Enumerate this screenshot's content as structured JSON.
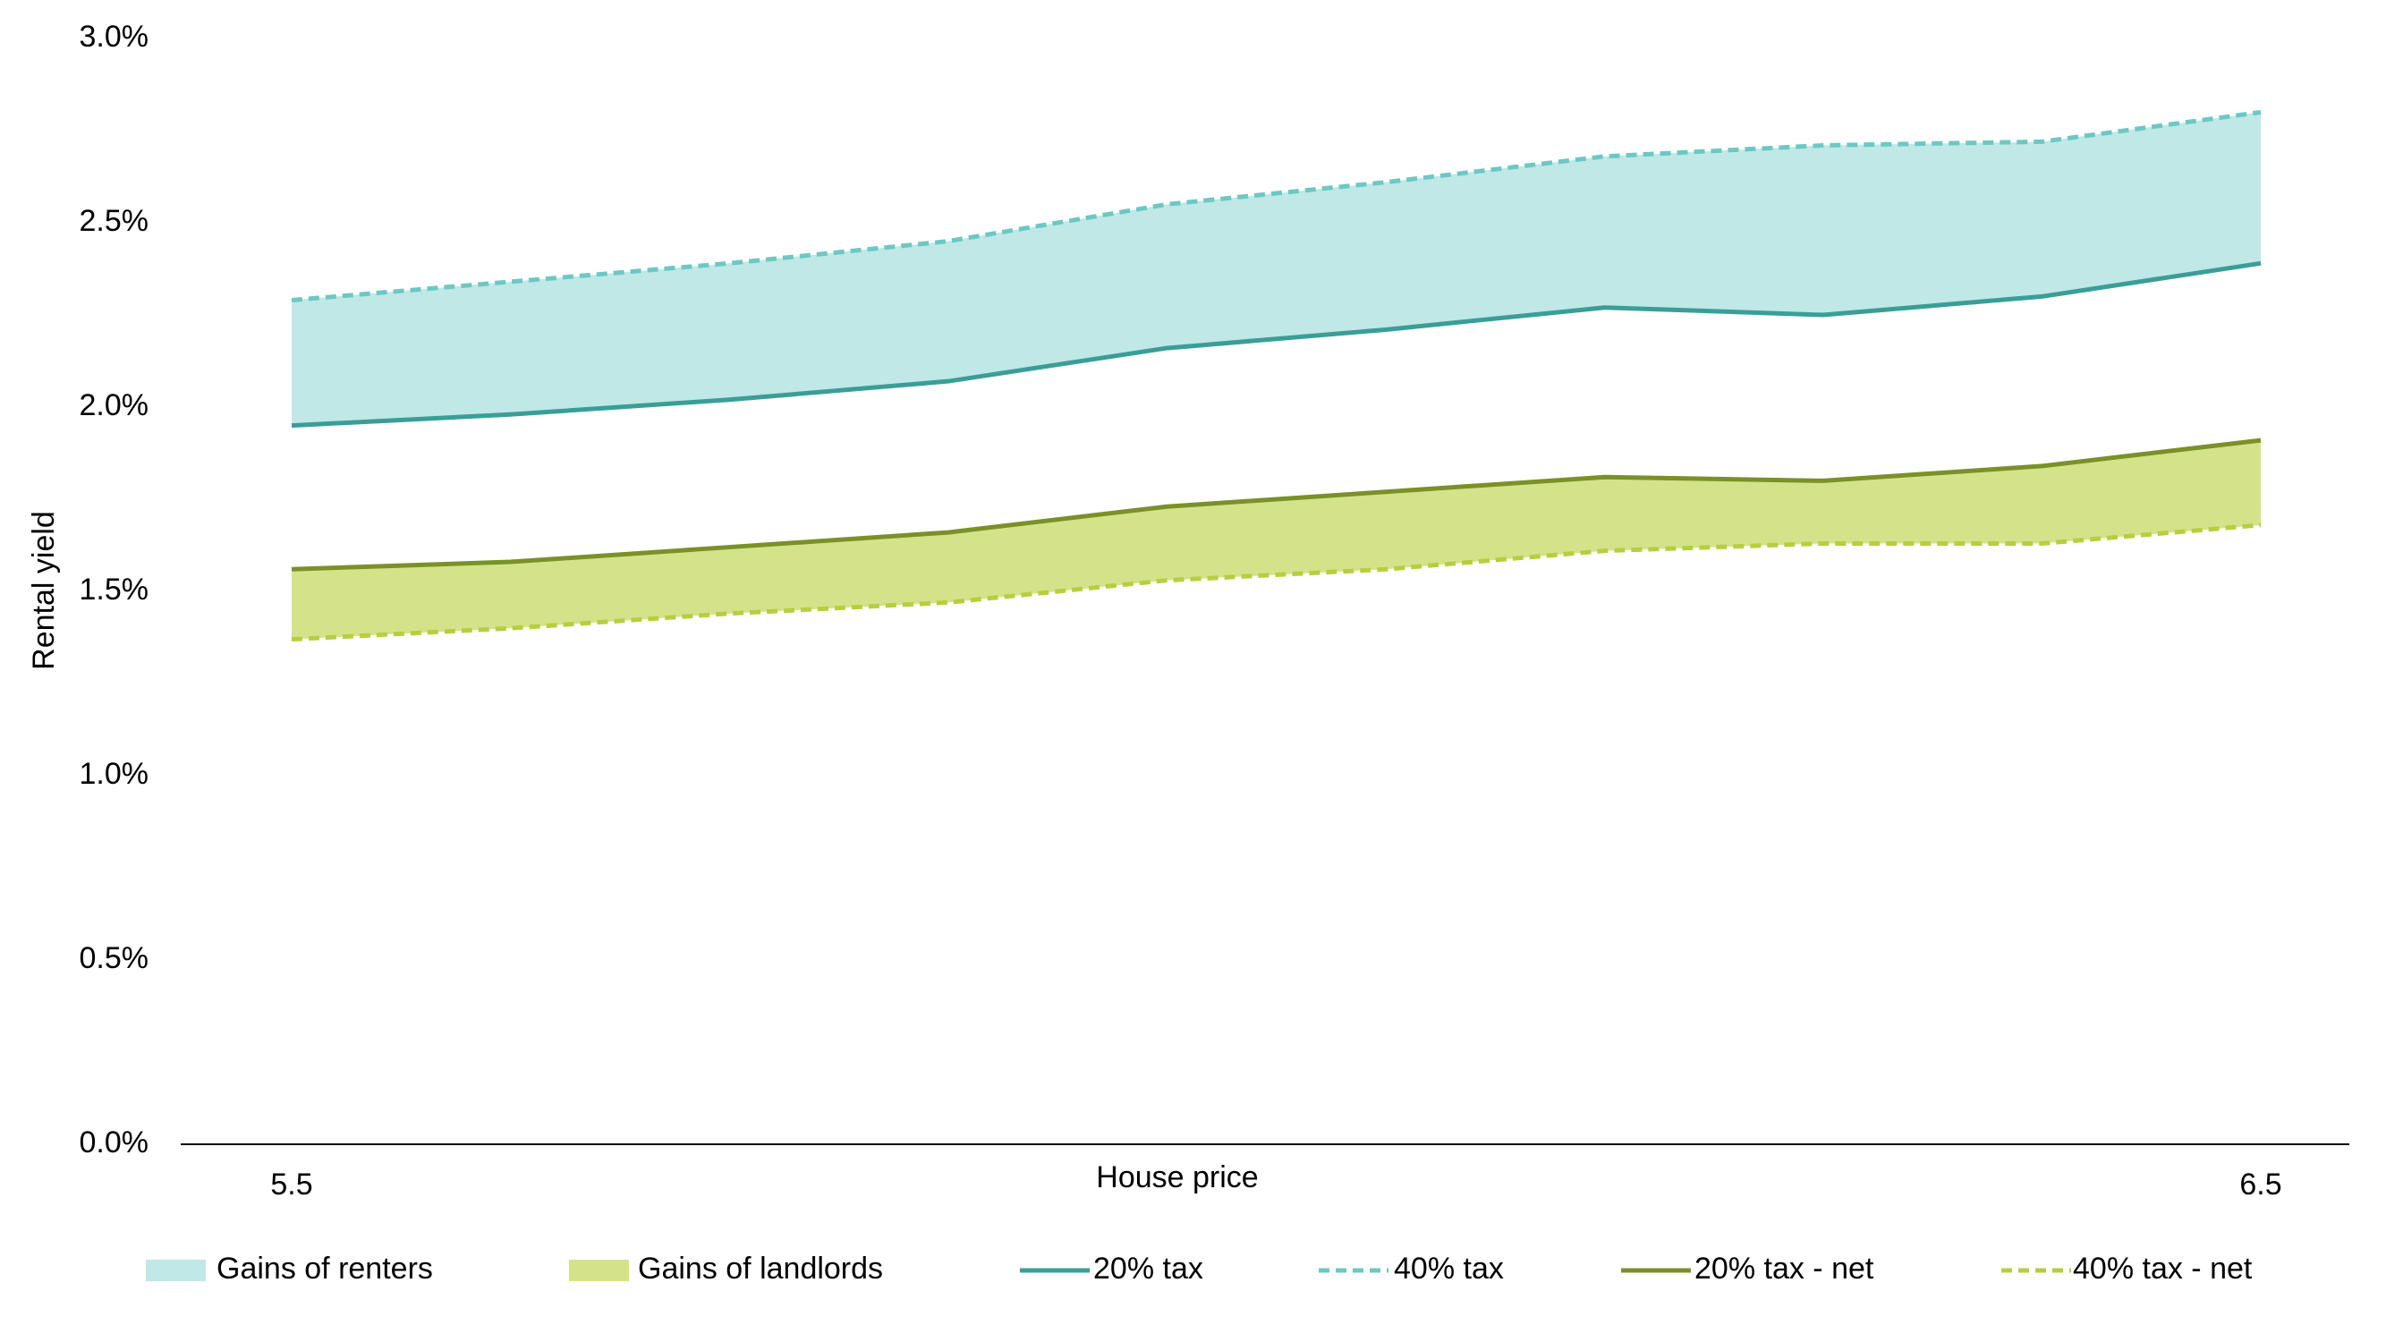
{
  "chart_data": {
    "type": "line",
    "x_label": "House price",
    "y_label": "Rental yield",
    "categories": [
      "5.5",
      null,
      null,
      null,
      null,
      null,
      null,
      null,
      null,
      "6.5"
    ],
    "ylim": [
      0,
      3
    ],
    "yticks": [
      {
        "value": 0,
        "label": "0.0%"
      },
      {
        "value": 0.5,
        "label": "0.5%"
      },
      {
        "value": 1,
        "label": "1.0%"
      },
      {
        "value": 1.5,
        "label": "1.5%"
      },
      {
        "value": 2,
        "label": "2.0%"
      },
      {
        "value": 2.5,
        "label": "2.5%"
      },
      {
        "value": 3,
        "label": "3.0%"
      }
    ],
    "areas": [
      {
        "name": "Gains of renters",
        "color": "#bfe8e6",
        "between": [
          0,
          1
        ]
      },
      {
        "name": "Gains of landlords",
        "color": "#d4e38a",
        "between": [
          3,
          2
        ]
      }
    ],
    "series": [
      {
        "name": "20% tax",
        "color": "#3a9e98",
        "dashed": false,
        "values": [
          1.95,
          1.98,
          2.02,
          2.07,
          2.16,
          2.21,
          2.27,
          2.25,
          2.3,
          2.39
        ]
      },
      {
        "name": "40% tax",
        "color": "#6cc8c2",
        "dashed": true,
        "values": [
          2.29,
          2.34,
          2.39,
          2.45,
          2.55,
          2.61,
          2.68,
          2.71,
          2.72,
          2.8
        ]
      },
      {
        "name": "20% tax - net",
        "color": "#7a9128",
        "dashed": false,
        "values": [
          1.56,
          1.58,
          1.62,
          1.66,
          1.73,
          1.77,
          1.81,
          1.8,
          1.84,
          1.91
        ]
      },
      {
        "name": "40% tax - net",
        "color": "#b5cf3f",
        "dashed": true,
        "values": [
          1.37,
          1.4,
          1.44,
          1.47,
          1.53,
          1.56,
          1.61,
          1.63,
          1.63,
          1.68
        ]
      }
    ]
  }
}
